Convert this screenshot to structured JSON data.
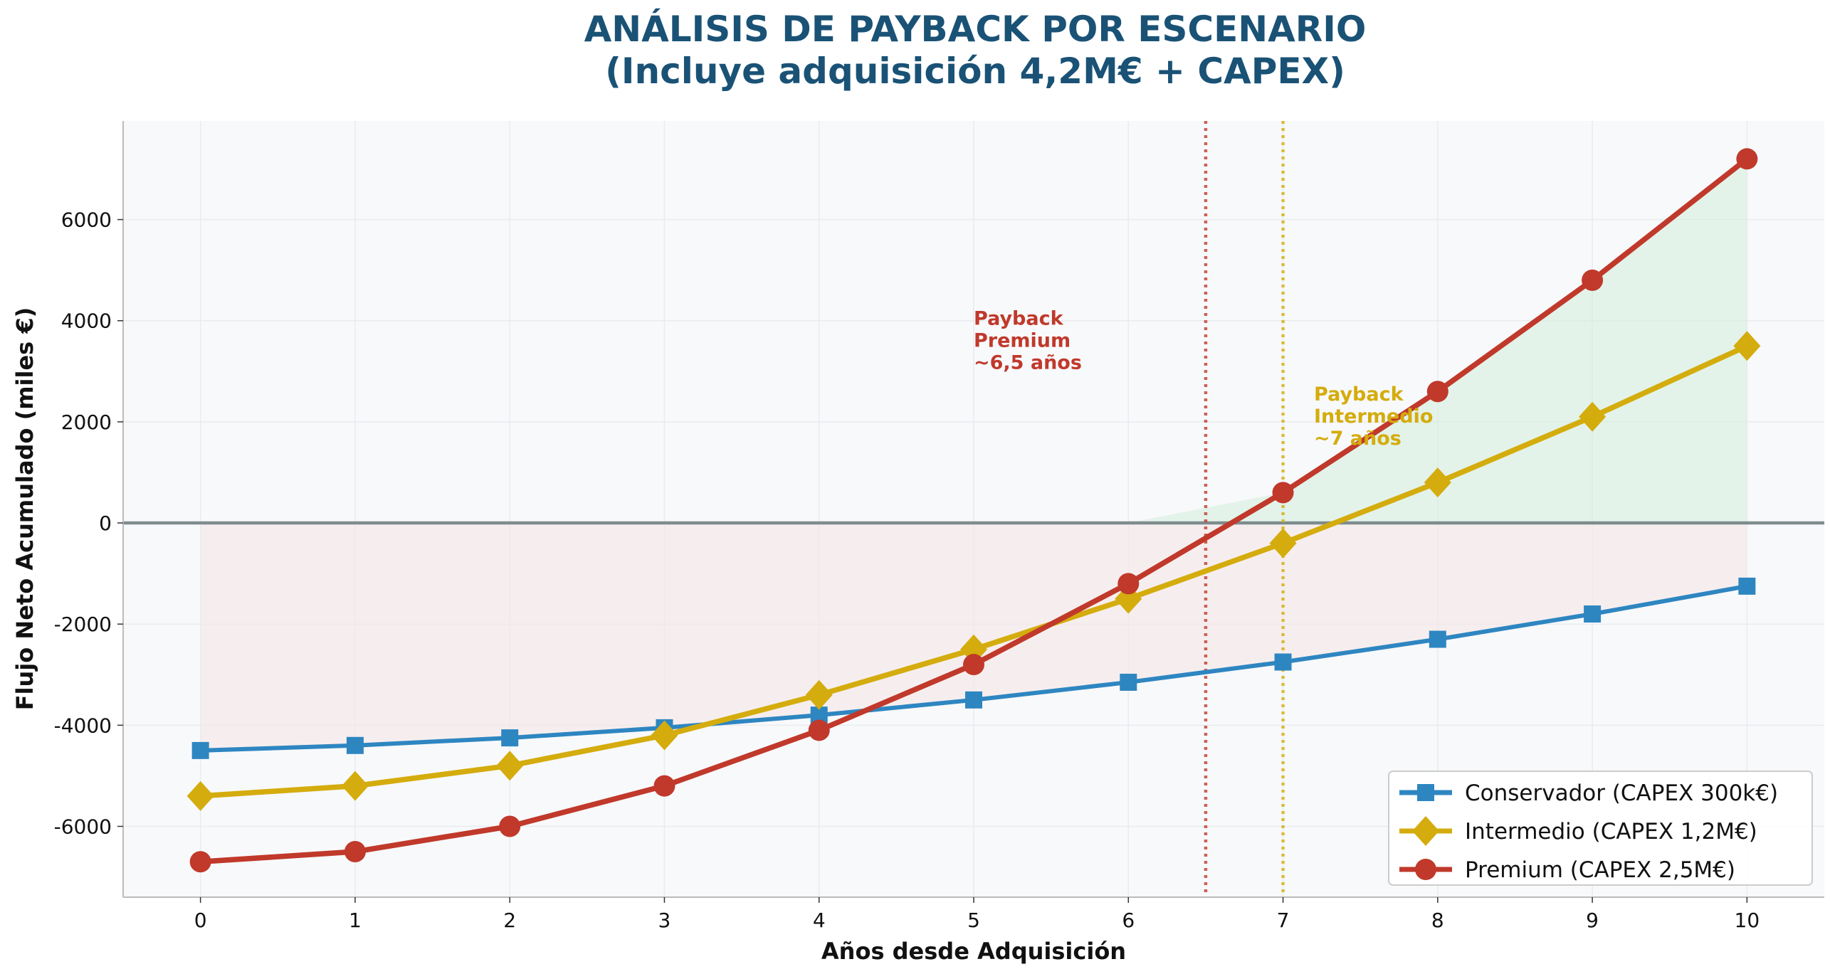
{
  "chart_data": {
    "type": "line",
    "title": "ANÁLISIS DE PAYBACK POR ESCENARIO",
    "subtitle": "(Incluye adquisición 4,2M€ + CAPEX)",
    "xlabel": "Años desde Adquisición",
    "ylabel": "Flujo Neto Acumulado (miles €)",
    "x": [
      0,
      1,
      2,
      3,
      4,
      5,
      6,
      7,
      8,
      9,
      10
    ],
    "xlim": [
      -0.5,
      10.5
    ],
    "ylim": [
      -7400,
      7950
    ],
    "xticks": [
      0,
      1,
      2,
      3,
      4,
      5,
      6,
      7,
      8,
      9,
      10
    ],
    "yticks": [
      -6000,
      -4000,
      -2000,
      0,
      2000,
      4000,
      6000
    ],
    "grid": true,
    "legend_position": "lower-right",
    "background_color": "#F8F9FB",
    "series": [
      {
        "name": "Conservador (CAPEX 300k€)",
        "color": "#2E86C1",
        "marker": "square",
        "values": [
          -4500,
          -4400,
          -4250,
          -4050,
          -3800,
          -3500,
          -3150,
          -2750,
          -2300,
          -1800,
          -1250
        ]
      },
      {
        "name": "Intermedio (CAPEX 1,2M€)",
        "color": "#D4AC0D",
        "marker": "diamond",
        "values": [
          -5400,
          -5200,
          -4800,
          -4200,
          -3400,
          -2500,
          -1500,
          -400,
          800,
          2100,
          3500
        ]
      },
      {
        "name": "Premium (CAPEX 2,5M€)",
        "color": "#C0392B",
        "marker": "circle",
        "values": [
          -6700,
          -6500,
          -6000,
          -5200,
          -4100,
          -2800,
          -1200,
          600,
          2600,
          4800,
          7200
        ]
      }
    ],
    "reference_lines": [
      {
        "type": "horizontal",
        "y": 0,
        "color": "#7F8C8D",
        "style": "solid"
      },
      {
        "type": "vertical",
        "x": 6.5,
        "color": "#C0392B",
        "style": "dotted"
      },
      {
        "type": "vertical",
        "x": 7,
        "color": "#D4AC0D",
        "style": "dotted"
      }
    ],
    "fills": [
      {
        "color": "#F5E6E6",
        "series": "Conservador",
        "region": "negative"
      },
      {
        "color": "#D5EEDD",
        "series": "Premium",
        "region": "positive"
      }
    ],
    "annotations": [
      {
        "lines": [
          "Payback",
          "Premium",
          "~6,5 años"
        ],
        "x": 5,
        "y": 4200,
        "color": "#C0392B"
      },
      {
        "lines": [
          "Payback",
          "Intermedio",
          "~7 años"
        ],
        "x": 7.2,
        "y": 2700,
        "color": "#D4AC0D"
      }
    ]
  }
}
